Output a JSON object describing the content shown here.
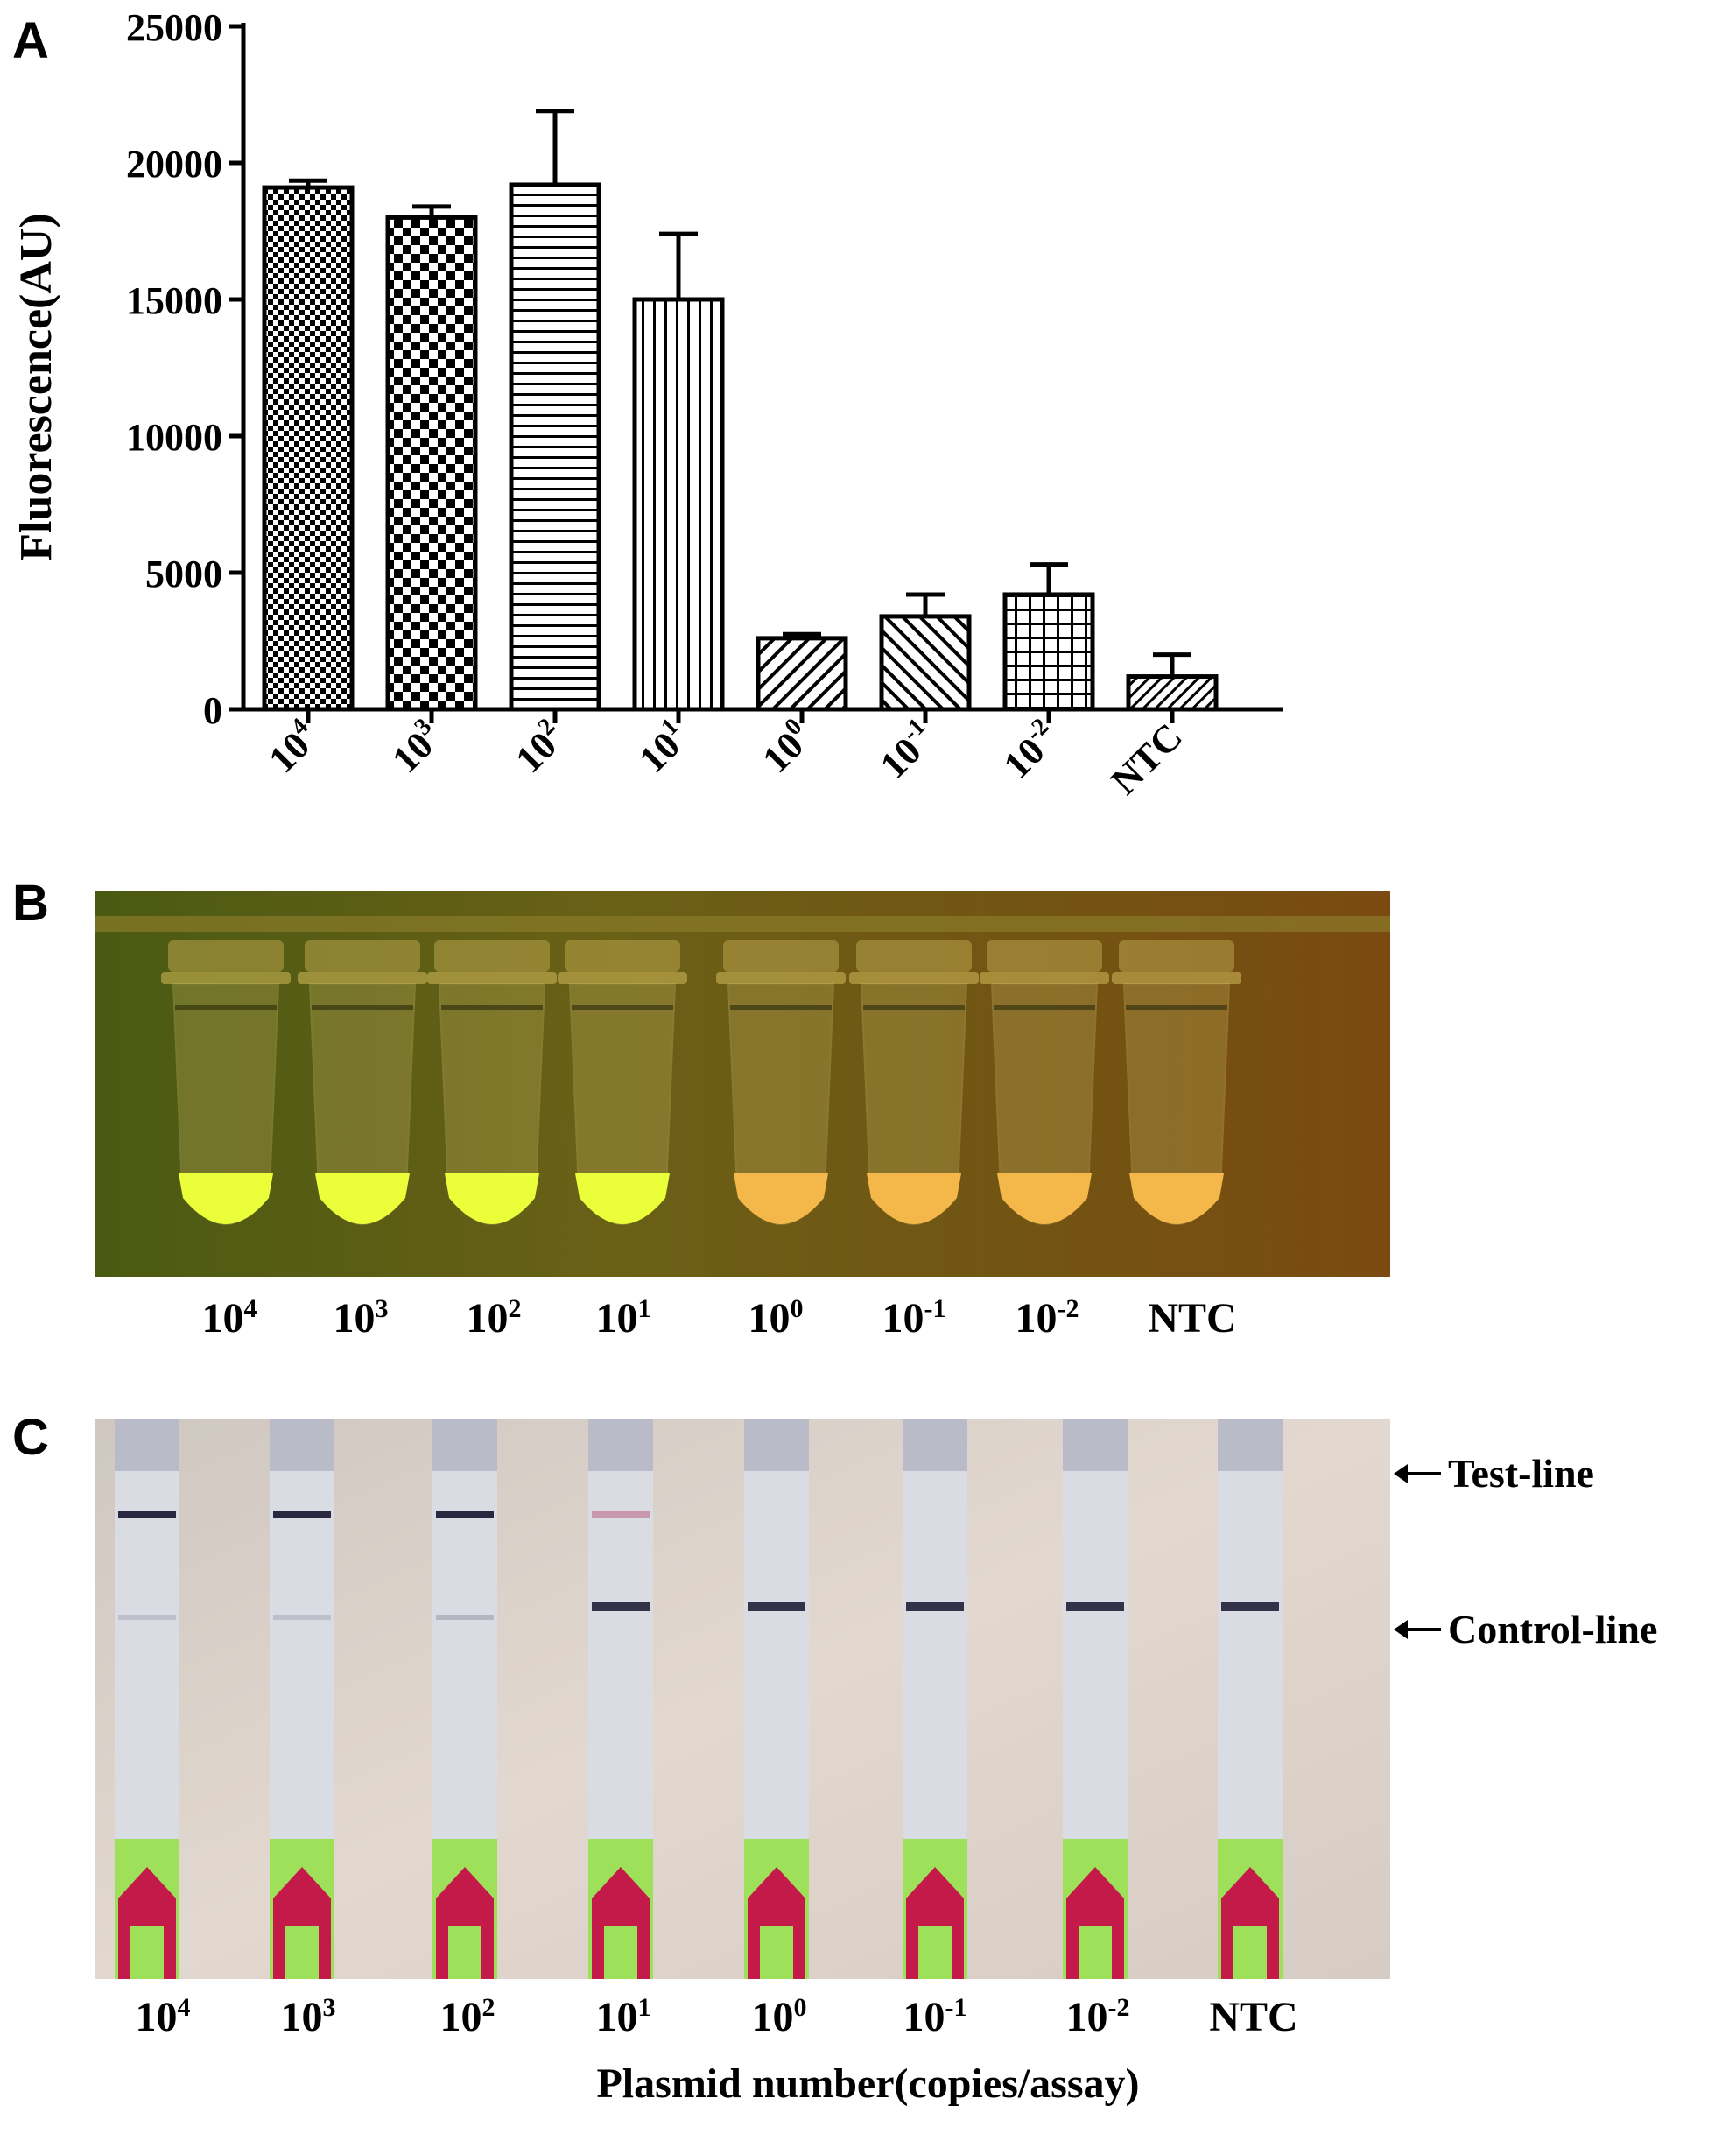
{
  "panel_labels": {
    "a": "A",
    "b": "B",
    "c": "C"
  },
  "samples": [
    "10^4",
    "10^3",
    "10^2",
    "10^1",
    "10^0",
    "10^-1",
    "10^-2",
    "NTC"
  ],
  "chart_data": {
    "type": "bar",
    "ylabel": "Fluorescence(AU)",
    "xlabel": "",
    "categories": [
      "10^4",
      "10^3",
      "10^2",
      "10^1",
      "10^0",
      "10^-1",
      "10^-2",
      "NTC"
    ],
    "values": [
      19100,
      18000,
      19200,
      15000,
      2600,
      3400,
      4200,
      1200
    ],
    "errors": [
      250,
      400,
      2700,
      2400,
      150,
      800,
      1100,
      800
    ],
    "patterns": [
      "fine-check",
      "check",
      "horizontal",
      "vertical",
      "diagonal-up",
      "diagonal-down",
      "grid",
      "diagonal-up-fine"
    ],
    "ylim": [
      0,
      25000
    ],
    "yticks": [
      0,
      5000,
      10000,
      15000,
      20000,
      25000
    ]
  },
  "panel_b": {
    "background": "#5a5a16",
    "positive_fill": "#eaff3a",
    "negative_fill": "#f3b74a",
    "tube_result": [
      "positive",
      "positive",
      "positive",
      "positive",
      "negative",
      "negative",
      "negative",
      "negative"
    ]
  },
  "panel_c": {
    "test_line_label": "Test-line",
    "control_line_label": "Control-line",
    "x_title": "Plasmid number(copies/assay)",
    "test_line_intensity": [
      0.95,
      0.95,
      0.95,
      0.25,
      0,
      0,
      0,
      0
    ],
    "control_line_intensity": [
      0.15,
      0.15,
      0.2,
      0.95,
      0.95,
      0.95,
      0.95,
      0.95
    ],
    "pad_color": "#9ee05a",
    "arrow_color": "#c41a4a"
  }
}
